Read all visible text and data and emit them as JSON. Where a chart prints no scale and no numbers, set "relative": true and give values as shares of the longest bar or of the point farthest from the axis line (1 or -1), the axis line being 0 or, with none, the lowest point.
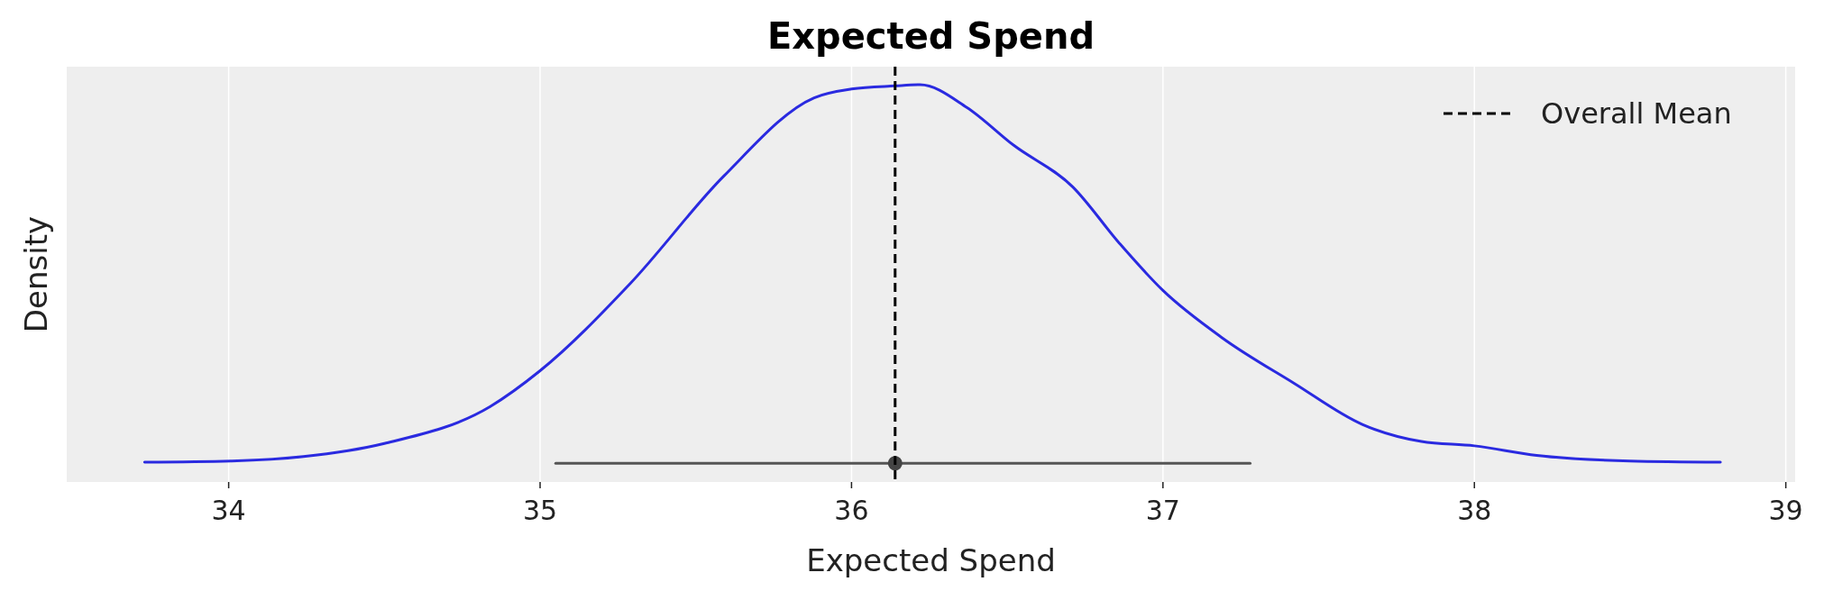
{
  "chart_data": {
    "type": "line",
    "title": "Expected Spend",
    "xlabel": "Expected Spend",
    "ylabel": "Density",
    "relative": true,
    "xlim": [
      33.48,
      39.03
    ],
    "xticks": [
      34,
      35,
      36,
      37,
      38,
      39
    ],
    "grid": "x",
    "legend": "top right",
    "series": [
      {
        "type": "line",
        "color": "#2a2ae0",
        "x": [
          33.73,
          34.01,
          34.24,
          34.5,
          34.84,
          35.0,
          35.29,
          35.59,
          35.88,
          36.0,
          36.14,
          36.22,
          36.37,
          36.52,
          36.71,
          36.86,
          37.0,
          37.19,
          37.42,
          37.64,
          37.83,
          38.0,
          38.2,
          38.5,
          38.79
        ],
        "values": [
          0.05,
          0.053,
          0.064,
          0.097,
          0.19,
          0.28,
          0.5,
          0.77,
          0.967,
          0.989,
          0.997,
          1.0,
          0.943,
          0.848,
          0.743,
          0.601,
          0.482,
          0.363,
          0.249,
          0.145,
          0.102,
          0.091,
          0.067,
          0.053,
          0.05
        ]
      },
      {
        "type": "line",
        "color": "#555555",
        "x": [
          35.05,
          37.28
        ],
        "values": [
          0.047,
          0.047
        ]
      },
      {
        "type": "scatter",
        "color": "#444444",
        "marker": "circle",
        "x": [
          36.14
        ],
        "values": [
          0.047
        ]
      }
    ],
    "ref_lines": [
      {
        "axis": "x",
        "value": 36.14,
        "label": "Overall Mean",
        "color": "#000000",
        "line_style": "dashed"
      }
    ]
  }
}
